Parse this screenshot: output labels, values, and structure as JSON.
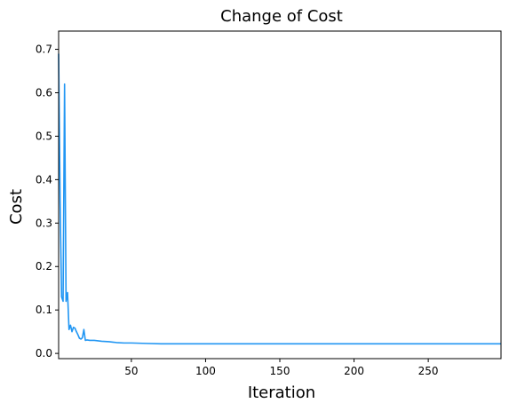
{
  "chart_data": {
    "type": "line",
    "title": "Change of Cost",
    "xlabel": "Iteration",
    "ylabel": "Cost",
    "xlim": [
      1,
      299
    ],
    "ylim": [
      -0.012,
      0.742
    ],
    "x_ticks": [
      50,
      100,
      150,
      200,
      250
    ],
    "y_ticks": [
      0.0,
      0.1,
      0.2,
      0.3,
      0.4,
      0.5,
      0.6,
      0.7
    ],
    "y_tick_labels": [
      "0.0",
      "0.1",
      "0.2",
      "0.3",
      "0.4",
      "0.5",
      "0.6",
      "0.7"
    ],
    "grid": false,
    "line_color": "#2196f3",
    "series": [
      {
        "x": [
          1,
          2,
          3,
          4,
          5,
          6,
          7,
          8,
          9,
          10,
          11,
          12,
          13,
          14,
          15,
          16,
          17,
          18,
          19,
          20,
          22,
          25,
          30,
          35,
          40,
          45,
          50,
          60,
          70,
          80,
          100,
          150,
          200,
          250,
          299
        ],
        "y": [
          0.69,
          0.35,
          0.13,
          0.12,
          0.62,
          0.12,
          0.14,
          0.055,
          0.065,
          0.05,
          0.06,
          0.058,
          0.05,
          0.043,
          0.035,
          0.033,
          0.036,
          0.055,
          0.03,
          0.031,
          0.03,
          0.03,
          0.028,
          0.027,
          0.025,
          0.024,
          0.024,
          0.023,
          0.022,
          0.022,
          0.022,
          0.022,
          0.022,
          0.022,
          0.022
        ]
      }
    ]
  }
}
